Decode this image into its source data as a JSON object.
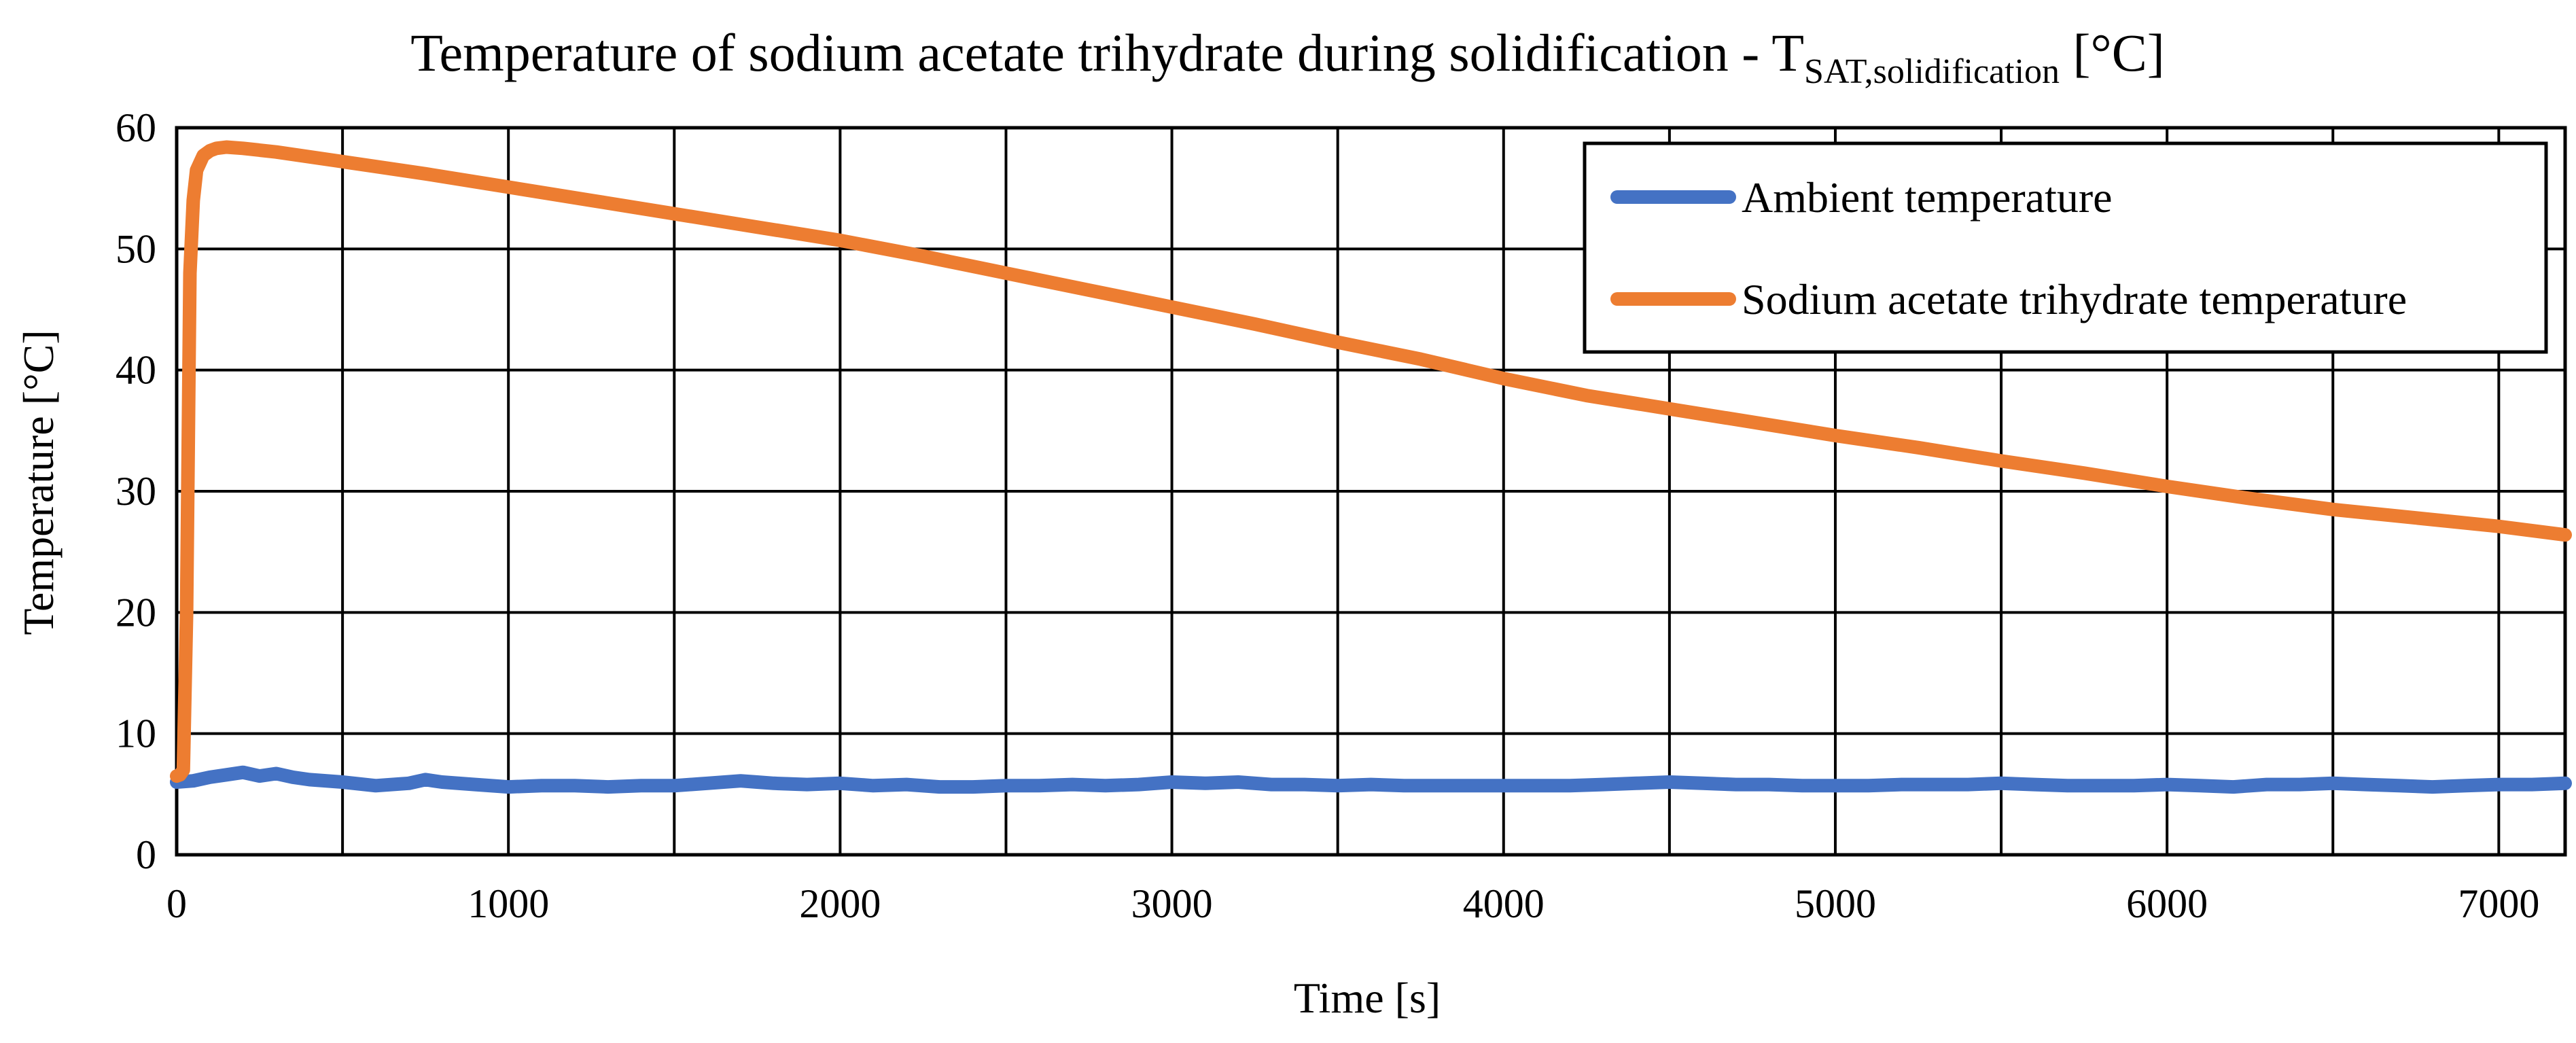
{
  "chart_data": {
    "type": "line",
    "title": {
      "main": "Temperature of sodium acetate trihydrate during solidification - T",
      "subscript": "SAT,solidification",
      "suffix": " [°C]"
    },
    "xlabel": "Time [s]",
    "ylabel": "Temperature [°C]",
    "xlim": [
      0,
      7200
    ],
    "ylim": [
      0,
      60
    ],
    "xticks": [
      0,
      1000,
      2000,
      3000,
      4000,
      5000,
      6000,
      7000
    ],
    "xtick_labels": [
      "0",
      "1000",
      "2000",
      "3000",
      "4000",
      "5000",
      "6000",
      "7000"
    ],
    "yticks": [
      0,
      10,
      20,
      30,
      40,
      50,
      60
    ],
    "ytick_labels": [
      "0",
      "10",
      "20",
      "30",
      "40",
      "50",
      "60"
    ],
    "grid_x_step": 500,
    "grid_y_step": 10,
    "grid": true,
    "legend_position": "top-right",
    "series": [
      {
        "name": "Ambient temperature",
        "color": "#4472C4",
        "x": [
          0,
          50,
          100,
          150,
          200,
          250,
          300,
          350,
          400,
          500,
          600,
          700,
          750,
          800,
          900,
          1000,
          1100,
          1200,
          1300,
          1400,
          1500,
          1600,
          1700,
          1750,
          1800,
          1900,
          2000,
          2100,
          2200,
          2300,
          2400,
          2500,
          2600,
          2700,
          2800,
          2900,
          3000,
          3100,
          3200,
          3300,
          3400,
          3500,
          3600,
          3700,
          3800,
          3900,
          4000,
          4100,
          4200,
          4300,
          4400,
          4500,
          4600,
          4700,
          4800,
          4900,
          5000,
          5100,
          5200,
          5300,
          5400,
          5500,
          5600,
          5700,
          5800,
          5900,
          6000,
          6100,
          6200,
          6300,
          6400,
          6500,
          6600,
          6700,
          6800,
          6900,
          7000,
          7100,
          7200
        ],
        "y": [
          6.0,
          6.1,
          6.4,
          6.6,
          6.8,
          6.5,
          6.7,
          6.4,
          6.2,
          6.0,
          5.7,
          5.9,
          6.2,
          6.0,
          5.8,
          5.6,
          5.7,
          5.7,
          5.6,
          5.7,
          5.7,
          5.9,
          6.1,
          6.0,
          5.9,
          5.8,
          5.9,
          5.7,
          5.8,
          5.6,
          5.6,
          5.7,
          5.7,
          5.8,
          5.7,
          5.8,
          6.0,
          5.9,
          6.0,
          5.8,
          5.8,
          5.7,
          5.8,
          5.7,
          5.7,
          5.7,
          5.7,
          5.7,
          5.7,
          5.8,
          5.9,
          6.0,
          5.9,
          5.8,
          5.8,
          5.7,
          5.7,
          5.7,
          5.8,
          5.8,
          5.8,
          5.9,
          5.8,
          5.7,
          5.7,
          5.7,
          5.8,
          5.7,
          5.6,
          5.8,
          5.8,
          5.9,
          5.8,
          5.7,
          5.6,
          5.7,
          5.8,
          5.8,
          5.9
        ]
      },
      {
        "name": "Sodium acetate trihydrate temperature",
        "color": "#ED7D31",
        "x": [
          0,
          10,
          20,
          30,
          40,
          50,
          60,
          80,
          100,
          120,
          150,
          200,
          300,
          500,
          750,
          1000,
          1250,
          1500,
          1750,
          2000,
          2250,
          2500,
          2750,
          3000,
          3250,
          3500,
          3750,
          4000,
          4250,
          4500,
          4750,
          5000,
          5250,
          5500,
          5750,
          6000,
          6250,
          6500,
          6750,
          7000,
          7200
        ],
        "y": [
          6.5,
          6.6,
          7.0,
          20.0,
          48.0,
          54.0,
          56.5,
          57.7,
          58.1,
          58.3,
          58.4,
          58.3,
          58.0,
          57.2,
          56.2,
          55.1,
          54.0,
          52.9,
          51.8,
          50.7,
          49.4,
          48.0,
          46.6,
          45.2,
          43.8,
          42.3,
          40.9,
          39.3,
          37.9,
          36.8,
          35.7,
          34.6,
          33.6,
          32.5,
          31.5,
          30.4,
          29.4,
          28.5,
          27.8,
          27.1,
          26.4
        ]
      }
    ]
  }
}
